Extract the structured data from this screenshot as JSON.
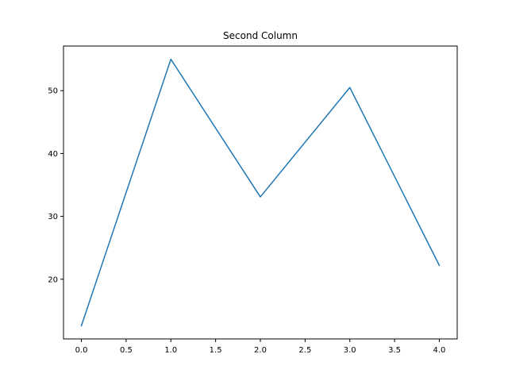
{
  "chart_data": {
    "type": "line",
    "title": "Second Column",
    "xlabel": "",
    "ylabel": "",
    "x": [
      0,
      1,
      2,
      3,
      4
    ],
    "series": [
      {
        "values": [
          12.6,
          55.0,
          33.1,
          50.5,
          22.2
        ]
      }
    ],
    "xlim": [
      -0.2,
      4.2
    ],
    "ylim": [
      10.5,
      57.1
    ],
    "xticks": [
      0.0,
      0.5,
      1.0,
      1.5,
      2.0,
      2.5,
      3.0,
      3.5,
      4.0
    ],
    "xtick_labels": [
      "0.0",
      "0.5",
      "1.0",
      "1.5",
      "2.0",
      "2.5",
      "3.0",
      "3.5",
      "4.0"
    ],
    "yticks": [
      20,
      30,
      40,
      50
    ],
    "ytick_labels": [
      "20",
      "30",
      "40",
      "50"
    ],
    "grid": false,
    "legend": "none",
    "line_color": "#1f77b4"
  }
}
